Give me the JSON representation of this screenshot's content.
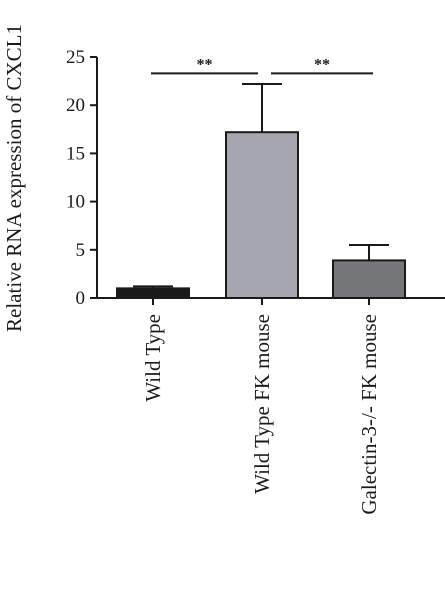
{
  "chart_data": {
    "type": "bar",
    "ylabel": "Relative RNA expression of CXCL1",
    "xlabel": "",
    "ylim": [
      0,
      25
    ],
    "yticks": [
      0,
      5,
      10,
      15,
      20,
      25
    ],
    "categories": [
      "Wild Type",
      "Wild Type FK mouse",
      "Galectin-3-/- FK mouse"
    ],
    "values": [
      1.0,
      17.2,
      3.9
    ],
    "error_upper": [
      0.2,
      5.0,
      1.6
    ],
    "bar_colors": [
      "#1a1a1a",
      "#a6a6b0",
      "#75777a"
    ],
    "significance": [
      {
        "from": 0,
        "to": 1,
        "label": "**",
        "y": 23.3
      },
      {
        "from": 1,
        "to": 2,
        "label": "**",
        "y": 23.3
      }
    ],
    "grid": false,
    "legend": "none"
  }
}
